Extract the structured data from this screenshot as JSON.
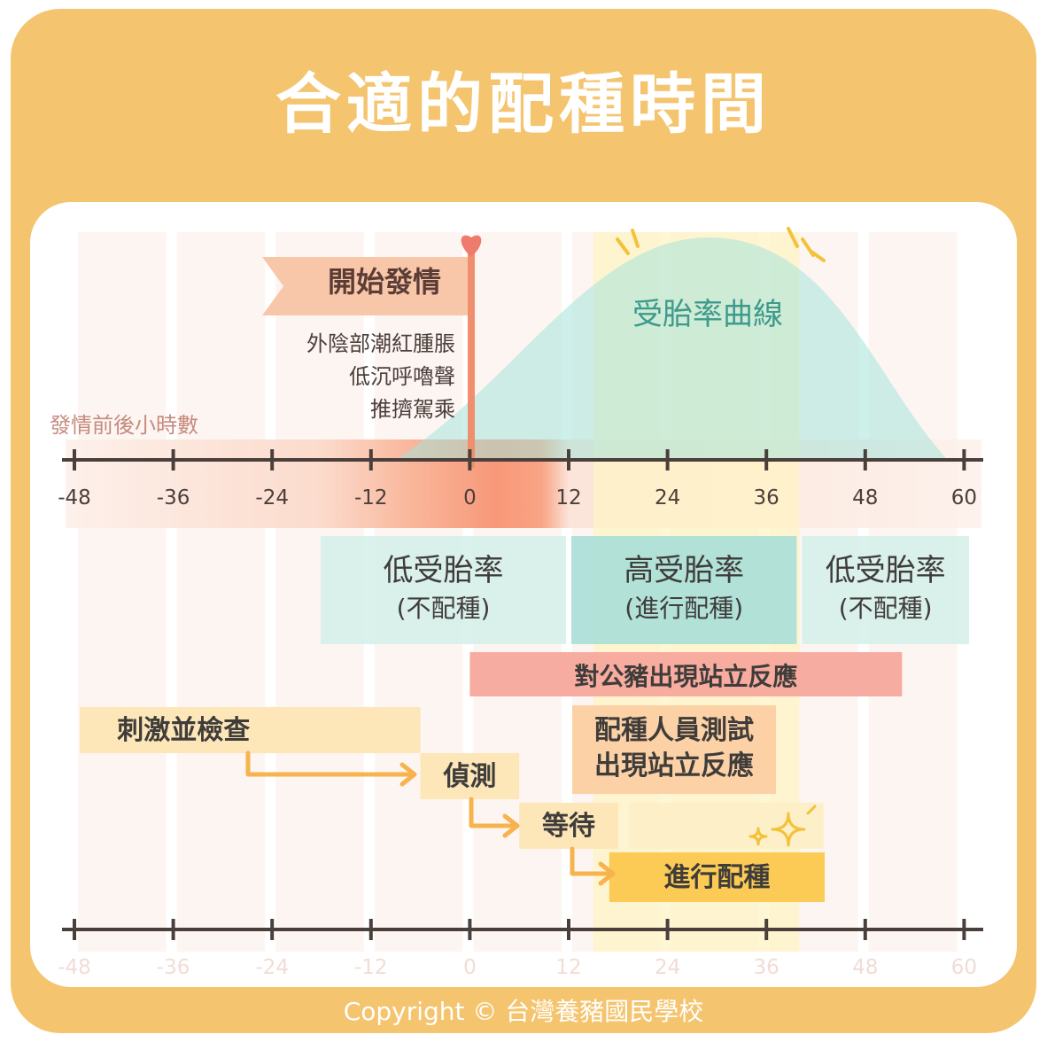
{
  "title": "合適的配種時間",
  "copyright": "Copyright © 台灣養豬國民學校",
  "axis": {
    "label": "發情前後小時數",
    "ticks": [
      -48,
      -36,
      -24,
      -12,
      0,
      12,
      24,
      36,
      48,
      60
    ]
  },
  "estrus_flag": {
    "label": "開始發情",
    "signs": [
      "外陰部潮紅腫脹",
      "低沉呼嚕聲",
      "推擠駕乘"
    ]
  },
  "curve_label": "受胎率曲線",
  "zones": [
    {
      "title": "低受胎率",
      "sub": "(不配種)",
      "from": -18,
      "to": 12
    },
    {
      "title": "高受胎率",
      "sub": "(進行配種)",
      "from": 12,
      "to": 40
    },
    {
      "title": "低受胎率",
      "sub": "(不配種)",
      "from": 40,
      "to": 60
    }
  ],
  "boar_response": {
    "label": "對公豬出現站立反應",
    "from": 0,
    "to": 53
  },
  "staff_test": {
    "line1": "配種人員測試",
    "line2": "出現站立反應",
    "from": 12,
    "to": 37
  },
  "steps": [
    {
      "label": "刺激並檢查",
      "from": -48,
      "to": -6
    },
    {
      "label": "偵測",
      "from": -6,
      "to": 6
    },
    {
      "label": "等待",
      "from": 6,
      "to": 18
    },
    {
      "label": "進行配種",
      "from": 18,
      "to": 42
    }
  ],
  "colors": {
    "frame": "#f4c46e",
    "flag": "#f8c6a8",
    "pole": "#ef8f6e",
    "heart": "#ee7b6c",
    "curve": "#a6e3da",
    "zone_low": "#d6efea",
    "zone_high": "#a9dfd7",
    "boar_bar": "#f7a89c",
    "steps": "#fde6b8",
    "mating": "#fbcb55",
    "arrow": "#f7b34d",
    "axis": "#4b3f3c"
  }
}
